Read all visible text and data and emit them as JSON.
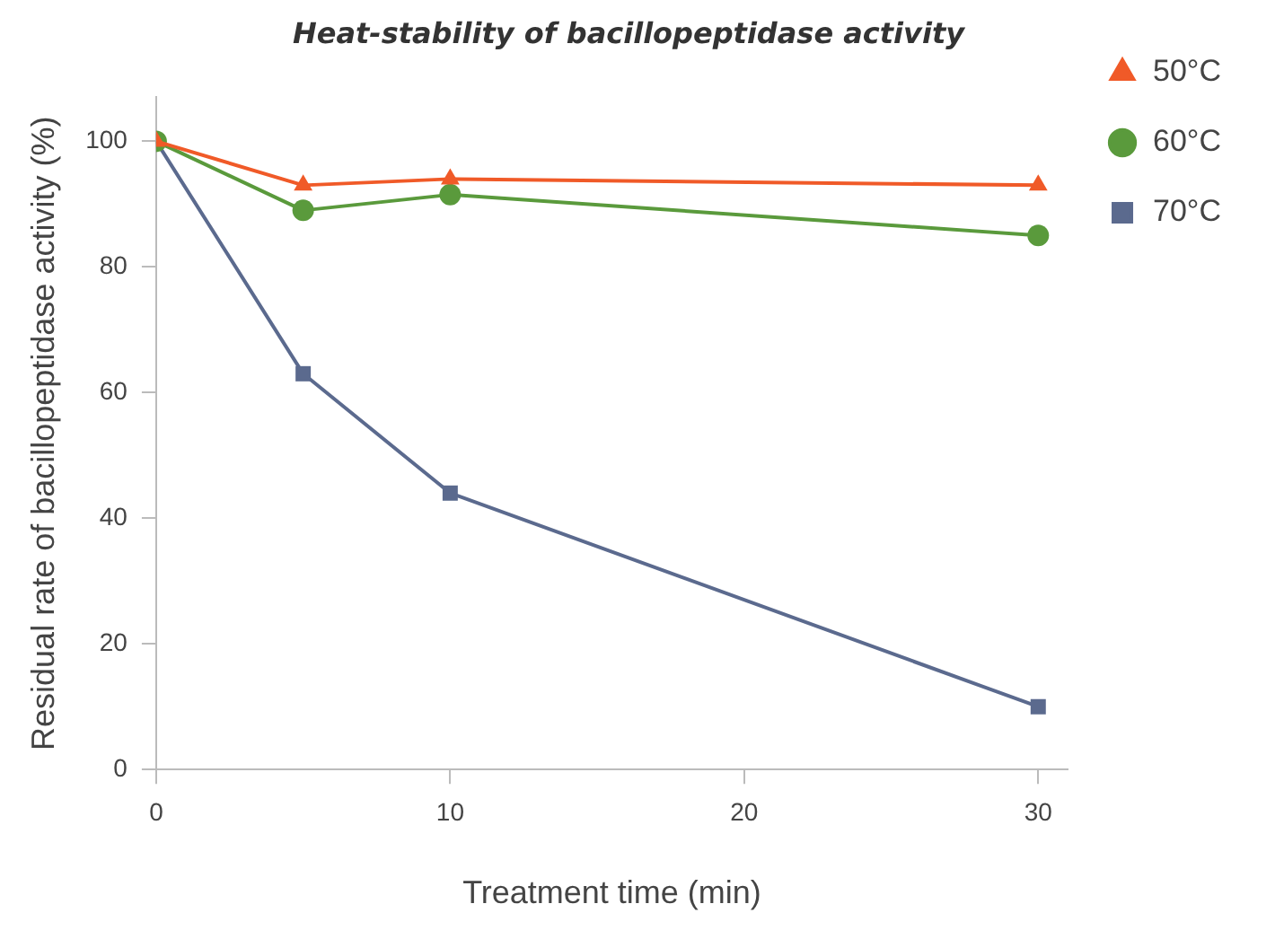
{
  "chart_data": {
    "type": "line",
    "title": "Heat-stability of bacillopeptidase activity",
    "xlabel": "Treatment time (min)",
    "ylabel": "Residual rate of bacillopeptidase activity (%)",
    "x": [
      0,
      5,
      10,
      30
    ],
    "series": [
      {
        "name": "50°C",
        "color": "#f05a28",
        "marker": "triangle",
        "values": [
          100,
          93,
          94,
          93
        ]
      },
      {
        "name": "60°C",
        "color": "#5a9a3c",
        "marker": "circle",
        "values": [
          100,
          89,
          91.5,
          85
        ]
      },
      {
        "name": "70°C",
        "color": "#5b6a8e",
        "marker": "square",
        "values": [
          100,
          63,
          44,
          10
        ]
      }
    ],
    "xlim": [
      0,
      31
    ],
    "xticks": [
      0,
      10,
      20,
      30
    ],
    "ylim": [
      0,
      107
    ],
    "yticks": [
      0,
      20,
      40,
      60,
      80,
      100
    ],
    "grid": false,
    "legend": "right",
    "line_style": "solid"
  }
}
